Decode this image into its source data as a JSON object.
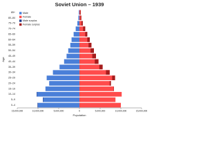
{
  "chart_data": {
    "type": "pyramid",
    "title": "Soviet Union – 1939",
    "x_label": "Population",
    "y_label": "Age",
    "categories": [
      "0–4",
      "5–9",
      "10–14",
      "15–19",
      "20–24",
      "25–29",
      "30–34",
      "35–39",
      "40–44",
      "45–49",
      "50–54",
      "55–59",
      "60–64",
      "65–69",
      "70–74",
      "75–79",
      "80–84",
      "85+"
    ],
    "series": [
      {
        "name": "Male",
        "color": "#4a7fd8",
        "side": "left",
        "values": [
          10100000,
          8800000,
          10300000,
          8200000,
          7300000,
          7900000,
          6400000,
          4800000,
          3700000,
          3100000,
          2700000,
          2200000,
          1900000,
          1400000,
          900000,
          500000,
          250000,
          150000
        ]
      },
      {
        "name": "Female",
        "color": "#ff4c4c",
        "side": "right",
        "values": [
          10000000,
          8700000,
          10200000,
          8300000,
          7600000,
          8600000,
          7300000,
          5600000,
          4600000,
          4000000,
          3500000,
          2900000,
          2500000,
          1900000,
          1400000,
          800000,
          450000,
          300000
        ]
      }
    ],
    "surplus_legend": [
      {
        "name": "Male surplus",
        "color": "#1e3b8c"
      },
      {
        "name": "Female surplus",
        "color": "#a51c1c"
      }
    ],
    "xlim": [
      -15000000,
      15000000
    ],
    "xticks": [
      {
        "value": -15000000,
        "label": "15,000,000"
      },
      {
        "value": -10000000,
        "label": "10,000,000"
      },
      {
        "value": -5000000,
        "label": "5,000,000"
      },
      0,
      {
        "value": 5000000,
        "label": "5,000,000"
      },
      {
        "value": 10000000,
        "label": "10,000,000"
      },
      {
        "value": 15000000,
        "label": "15,000,000"
      }
    ]
  }
}
